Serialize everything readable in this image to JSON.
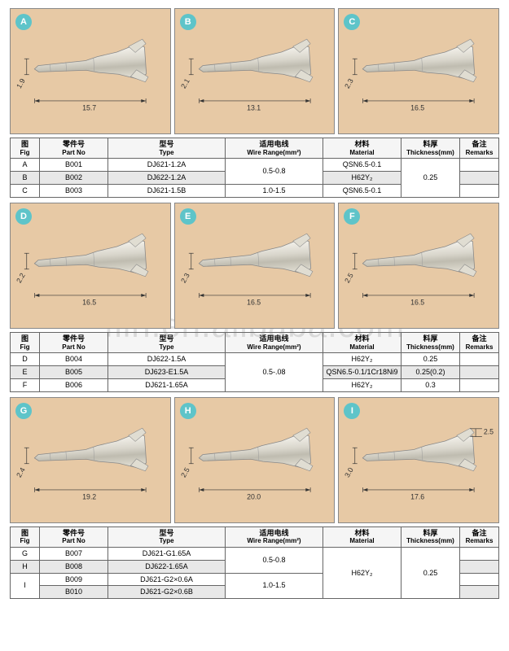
{
  "watermark": "filn.en.alibaba.com",
  "headers": {
    "fig_cn": "图",
    "fig_en": "Fig",
    "part_cn": "零件号",
    "part_en": "Part No",
    "type_cn": "型号",
    "type_en": "Type",
    "wire_cn": "适用电线",
    "wire_en": "Wire Range(mm²)",
    "mat_cn": "材料",
    "mat_en": "Material",
    "thick_cn": "料厚",
    "thick_en": "Thickness(mm)",
    "rem_cn": "备注",
    "rem_en": "Remarks"
  },
  "section1": {
    "figs": [
      {
        "letter": "A",
        "dim_h": "1.9",
        "dim_w": "15.7"
      },
      {
        "letter": "B",
        "dim_h": "2.1",
        "dim_w": "13.1"
      },
      {
        "letter": "C",
        "dim_h": "2.3",
        "dim_w": "16.5"
      }
    ],
    "rows": [
      {
        "fig": "A",
        "part": "B001",
        "type": "DJ621-1.2A",
        "wire": "0.5-0.8",
        "mat": "QSN6.5-0.1",
        "thick": "0.25",
        "rem": "",
        "shade": false,
        "wire_span": 2,
        "thick_span": 3
      },
      {
        "fig": "B",
        "part": "B002",
        "type": "DJ622-1.2A",
        "wire": "",
        "mat": "H62Y₂",
        "thick": "",
        "rem": "",
        "shade": true,
        "wire_span": 0,
        "thick_span": 0
      },
      {
        "fig": "C",
        "part": "B003",
        "type": "DJ621-1.5B",
        "wire": "1.0-1.5",
        "mat": "QSN6.5-0.1",
        "thick": "",
        "rem": "",
        "shade": false,
        "wire_span": 1,
        "thick_span": 0
      }
    ]
  },
  "section2": {
    "figs": [
      {
        "letter": "D",
        "dim_h": "2.2",
        "dim_w": "16.5"
      },
      {
        "letter": "E",
        "dim_h": "2.3",
        "dim_w": "16.5"
      },
      {
        "letter": "F",
        "dim_h": "2.5",
        "dim_w": "16.5"
      }
    ],
    "rows": [
      {
        "fig": "D",
        "part": "B004",
        "type": "DJ622-1.5A",
        "wire": "0.5-.08",
        "mat": "H62Y₂",
        "thick": "0.25",
        "rem": "",
        "shade": false,
        "wire_span": 3
      },
      {
        "fig": "E",
        "part": "B005",
        "type": "DJ623-E1.5A",
        "wire": "",
        "mat": "QSN6.5-0.1/1Cr18Ni9",
        "thick": "0.25(0.2)",
        "rem": "",
        "shade": true,
        "wire_span": 0
      },
      {
        "fig": "F",
        "part": "B006",
        "type": "DJ621-1.65A",
        "wire": "",
        "mat": "H62Y₂",
        "thick": "0.3",
        "rem": "",
        "shade": false,
        "wire_span": 0
      }
    ]
  },
  "section3": {
    "figs": [
      {
        "letter": "G",
        "dim_h": "2.4",
        "dim_w": "19.2",
        "extra": ""
      },
      {
        "letter": "H",
        "dim_h": "2.5",
        "dim_w": "20.0",
        "extra": ""
      },
      {
        "letter": "I",
        "dim_h": "3.0",
        "dim_w": "17.6",
        "extra": "2.5"
      }
    ],
    "rows": [
      {
        "fig": "G",
        "part": "B007",
        "type": "DJ621-G1.65A",
        "wire": "0.5-0.8",
        "mat": "H62Y₂",
        "thick": "0.25",
        "rem": "",
        "shade": false,
        "fig_span": 1,
        "wscope": 2,
        "mat_span": 4,
        "thick_span": 4
      },
      {
        "fig": "H",
        "part": "B008",
        "type": "DJ622-1.65A",
        "wire": "",
        "mat": "",
        "thick": "",
        "rem": "",
        "shade": true,
        "fig_span": 1,
        "wscope": 0,
        "mat_span": 0,
        "thick_span": 0
      },
      {
        "fig": "I",
        "part": "B009",
        "type": "DJ621-G2×0.6A",
        "wire": "1.0-1.5",
        "mat": "",
        "thick": "",
        "rem": "",
        "shade": false,
        "fig_span": 2,
        "wscope": 2,
        "mat_span": 0,
        "thick_span": 0
      },
      {
        "fig": "",
        "part": "B010",
        "type": "DJ621-G2×0.6B",
        "wire": "",
        "mat": "",
        "thick": "",
        "rem": "",
        "shade": true,
        "fig_span": 0,
        "wscope": 0,
        "mat_span": 0,
        "thick_span": 0
      }
    ]
  },
  "style": {
    "badge_color": "#5ec4c9",
    "cell_bg": "#e7c9a5",
    "border_color": "#666",
    "shade_bg": "#e8e8e8"
  }
}
